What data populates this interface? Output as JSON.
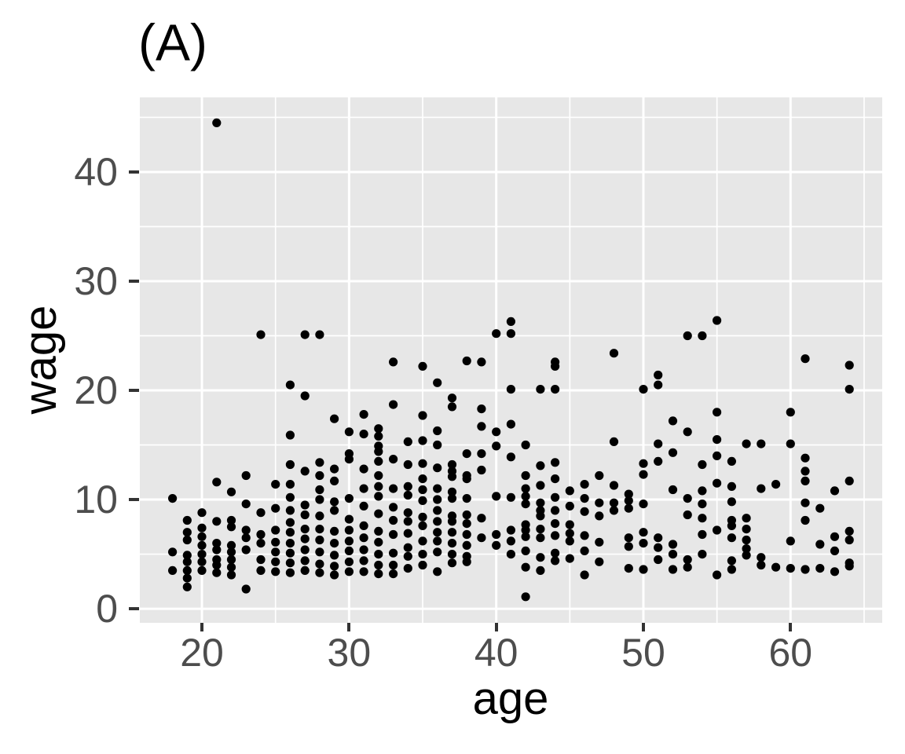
{
  "title": "(A)",
  "colors": {
    "background": "#FFFFFF",
    "panel_background": "#E7E7E7",
    "grid": "#FFFFFF",
    "point": "#000000",
    "tick_mark": "#333333",
    "tick_label": "#4D4D4D",
    "text": "#000000"
  },
  "chart_data": {
    "type": "scatter",
    "title": "(A)",
    "xlabel": "age",
    "ylabel": "wage",
    "xlim": [
      15.78,
      66.23
    ],
    "ylim": [
      -1.29,
      46.83
    ],
    "x_ticks": [
      20,
      30,
      40,
      50,
      60
    ],
    "y_ticks": [
      0,
      10,
      20,
      30,
      40
    ],
    "x_minor_ticks": [
      25,
      35,
      45,
      55,
      65
    ],
    "y_minor_ticks": [
      5,
      15,
      25,
      35,
      45
    ],
    "grid": true,
    "legend": "none",
    "point_radius_px": 5.6,
    "major_grid_width": 3,
    "minor_grid_width": 1.7,
    "points": [
      [
        18,
        10.1
      ],
      [
        18,
        5.2
      ],
      [
        18,
        3.5
      ],
      [
        19,
        8.1
      ],
      [
        19,
        7.0
      ],
      [
        19,
        6.3
      ],
      [
        19,
        4.9
      ],
      [
        19,
        4.3
      ],
      [
        19,
        3.5
      ],
      [
        19,
        2.8
      ],
      [
        19,
        2.0
      ],
      [
        20,
        8.8
      ],
      [
        20,
        7.4
      ],
      [
        20,
        6.6
      ],
      [
        20,
        5.8
      ],
      [
        20,
        5.0
      ],
      [
        20,
        4.3
      ],
      [
        20,
        3.5
      ],
      [
        21,
        44.5
      ],
      [
        21,
        11.6
      ],
      [
        21,
        8.0
      ],
      [
        21,
        6.0
      ],
      [
        21,
        5.4
      ],
      [
        21,
        4.5
      ],
      [
        21,
        4.0
      ],
      [
        21,
        3.3
      ],
      [
        22,
        10.7
      ],
      [
        22,
        8.1
      ],
      [
        22,
        7.5
      ],
      [
        22,
        5.8
      ],
      [
        22,
        5.2
      ],
      [
        22,
        4.5
      ],
      [
        22,
        3.8
      ],
      [
        22,
        3.1
      ],
      [
        23,
        12.2
      ],
      [
        23,
        9.6
      ],
      [
        23,
        7.2
      ],
      [
        23,
        6.5
      ],
      [
        23,
        5.4
      ],
      [
        23,
        1.8
      ],
      [
        24,
        25.1
      ],
      [
        24,
        8.8
      ],
      [
        24,
        6.8
      ],
      [
        24,
        6.0
      ],
      [
        24,
        4.5
      ],
      [
        24,
        3.5
      ],
      [
        25,
        11.4
      ],
      [
        25,
        9.2
      ],
      [
        25,
        7.2
      ],
      [
        25,
        6.1
      ],
      [
        25,
        5.2
      ],
      [
        25,
        4.3
      ],
      [
        25,
        3.4
      ],
      [
        26,
        20.5
      ],
      [
        26,
        15.9
      ],
      [
        26,
        13.2
      ],
      [
        26,
        11.4
      ],
      [
        26,
        10.2
      ],
      [
        26,
        9.0
      ],
      [
        26,
        7.9
      ],
      [
        26,
        7.0
      ],
      [
        26,
        6.0
      ],
      [
        26,
        5.1
      ],
      [
        26,
        4.2
      ],
      [
        26,
        3.3
      ],
      [
        27,
        25.1
      ],
      [
        27,
        19.5
      ],
      [
        27,
        12.6
      ],
      [
        27,
        9.5
      ],
      [
        27,
        8.6
      ],
      [
        27,
        7.3
      ],
      [
        27,
        6.4
      ],
      [
        27,
        5.4
      ],
      [
        27,
        4.4
      ],
      [
        27,
        3.5
      ],
      [
        28,
        25.1
      ],
      [
        28,
        13.4
      ],
      [
        28,
        12.2
      ],
      [
        28,
        10.9
      ],
      [
        28,
        10.0
      ],
      [
        28,
        8.5
      ],
      [
        28,
        7.3
      ],
      [
        28,
        6.3
      ],
      [
        28,
        5.2
      ],
      [
        28,
        4.1
      ],
      [
        28,
        3.3
      ],
      [
        29,
        17.4
      ],
      [
        29,
        12.8
      ],
      [
        29,
        11.7
      ],
      [
        29,
        9.8
      ],
      [
        29,
        9.0
      ],
      [
        29,
        7.1
      ],
      [
        29,
        6.0
      ],
      [
        29,
        4.9
      ],
      [
        29,
        3.9
      ],
      [
        29,
        3.1
      ],
      [
        30,
        16.2
      ],
      [
        30,
        14.2
      ],
      [
        30,
        13.7
      ],
      [
        30,
        10.1
      ],
      [
        30,
        8.2
      ],
      [
        30,
        7.2
      ],
      [
        30,
        6.2
      ],
      [
        30,
        5.3
      ],
      [
        30,
        4.3
      ],
      [
        30,
        3.4
      ],
      [
        31,
        17.8
      ],
      [
        31,
        16.0
      ],
      [
        31,
        12.8
      ],
      [
        31,
        11.0
      ],
      [
        31,
        9.4
      ],
      [
        31,
        7.6
      ],
      [
        31,
        6.5
      ],
      [
        31,
        5.4
      ],
      [
        31,
        4.4
      ],
      [
        31,
        3.4
      ],
      [
        32,
        16.5
      ],
      [
        32,
        15.8
      ],
      [
        32,
        14.9
      ],
      [
        32,
        14.4
      ],
      [
        32,
        13.5
      ],
      [
        32,
        12.2
      ],
      [
        32,
        11.2
      ],
      [
        32,
        10.3
      ],
      [
        32,
        8.7
      ],
      [
        32,
        7.1
      ],
      [
        32,
        6.1
      ],
      [
        32,
        5.0
      ],
      [
        32,
        4.0
      ],
      [
        32,
        3.2
      ],
      [
        33,
        22.6
      ],
      [
        33,
        18.7
      ],
      [
        33,
        13.7
      ],
      [
        33,
        11.0
      ],
      [
        33,
        9.3
      ],
      [
        33,
        8.1
      ],
      [
        33,
        6.8
      ],
      [
        33,
        5.1
      ],
      [
        33,
        4.0
      ],
      [
        33,
        3.2
      ],
      [
        34,
        15.3
      ],
      [
        34,
        13.2
      ],
      [
        34,
        11.2
      ],
      [
        34,
        10.4
      ],
      [
        34,
        8.8
      ],
      [
        34,
        8.0
      ],
      [
        34,
        6.9
      ],
      [
        34,
        5.6
      ],
      [
        34,
        4.8
      ],
      [
        34,
        3.7
      ],
      [
        35,
        22.2
      ],
      [
        35,
        17.7
      ],
      [
        35,
        15.4
      ],
      [
        35,
        13.3
      ],
      [
        35,
        11.9
      ],
      [
        35,
        10.9
      ],
      [
        35,
        9.9
      ],
      [
        35,
        8.4
      ],
      [
        35,
        7.6
      ],
      [
        35,
        6.2
      ],
      [
        35,
        5.0
      ],
      [
        35,
        4.0
      ],
      [
        36,
        20.7
      ],
      [
        36,
        16.3
      ],
      [
        36,
        15.0
      ],
      [
        36,
        12.9
      ],
      [
        36,
        11.0
      ],
      [
        36,
        10.0
      ],
      [
        36,
        9.0
      ],
      [
        36,
        8.0
      ],
      [
        36,
        7.0
      ],
      [
        36,
        6.2
      ],
      [
        36,
        5.2
      ],
      [
        36,
        3.4
      ],
      [
        37,
        19.3
      ],
      [
        37,
        18.5
      ],
      [
        37,
        13.2
      ],
      [
        37,
        12.6
      ],
      [
        37,
        12.1
      ],
      [
        37,
        10.7
      ],
      [
        37,
        10.1
      ],
      [
        37,
        8.5
      ],
      [
        37,
        8.0
      ],
      [
        37,
        7.0
      ],
      [
        37,
        6.0
      ],
      [
        37,
        5.0
      ],
      [
        37,
        4.2
      ],
      [
        38,
        22.7
      ],
      [
        38,
        14.2
      ],
      [
        38,
        12.2
      ],
      [
        38,
        11.9
      ],
      [
        38,
        10.1
      ],
      [
        38,
        8.6
      ],
      [
        38,
        7.8
      ],
      [
        38,
        6.8
      ],
      [
        38,
        5.8
      ],
      [
        38,
        4.8
      ],
      [
        38,
        4.3
      ],
      [
        39,
        22.6
      ],
      [
        39,
        18.3
      ],
      [
        39,
        16.7
      ],
      [
        39,
        14.2
      ],
      [
        39,
        12.7
      ],
      [
        39,
        8.3
      ],
      [
        39,
        6.5
      ],
      [
        40,
        25.2
      ],
      [
        40,
        16.2
      ],
      [
        40,
        14.9
      ],
      [
        40,
        10.3
      ],
      [
        40,
        6.8
      ],
      [
        40,
        5.8
      ],
      [
        41,
        26.3
      ],
      [
        41,
        25.2
      ],
      [
        41,
        20.1
      ],
      [
        41,
        16.9
      ],
      [
        41,
        13.9
      ],
      [
        41,
        10.2
      ],
      [
        41,
        7.2
      ],
      [
        41,
        6.2
      ],
      [
        41,
        5.0
      ],
      [
        42,
        15.0
      ],
      [
        42,
        12.2
      ],
      [
        42,
        11.0
      ],
      [
        42,
        10.3
      ],
      [
        42,
        9.6
      ],
      [
        42,
        7.7
      ],
      [
        42,
        7.2
      ],
      [
        42,
        6.6
      ],
      [
        42,
        5.3
      ],
      [
        42,
        3.8
      ],
      [
        42,
        1.1
      ],
      [
        43,
        20.1
      ],
      [
        43,
        13.1
      ],
      [
        43,
        11.3
      ],
      [
        43,
        9.7
      ],
      [
        43,
        9.0
      ],
      [
        43,
        8.5
      ],
      [
        43,
        7.3
      ],
      [
        43,
        6.5
      ],
      [
        43,
        4.7
      ],
      [
        43,
        3.5
      ],
      [
        44,
        22.6
      ],
      [
        44,
        22.2
      ],
      [
        44,
        20.1
      ],
      [
        44,
        13.4
      ],
      [
        44,
        11.9
      ],
      [
        44,
        10.2
      ],
      [
        44,
        9.0
      ],
      [
        44,
        7.8
      ],
      [
        44,
        6.7
      ],
      [
        44,
        5.1
      ],
      [
        44,
        4.4
      ],
      [
        45,
        10.8
      ],
      [
        45,
        9.4
      ],
      [
        45,
        7.7
      ],
      [
        45,
        6.9
      ],
      [
        45,
        6.2
      ],
      [
        45,
        4.6
      ],
      [
        46,
        11.4
      ],
      [
        46,
        10.1
      ],
      [
        46,
        8.9
      ],
      [
        46,
        6.7
      ],
      [
        46,
        5.3
      ],
      [
        46,
        3.1
      ],
      [
        47,
        12.2
      ],
      [
        47,
        9.7
      ],
      [
        47,
        8.5
      ],
      [
        47,
        6.1
      ],
      [
        47,
        4.3
      ],
      [
        48,
        23.4
      ],
      [
        48,
        15.3
      ],
      [
        48,
        11.3
      ],
      [
        48,
        9.7
      ],
      [
        48,
        9.0
      ],
      [
        49,
        10.5
      ],
      [
        49,
        9.9
      ],
      [
        49,
        9.2
      ],
      [
        49,
        6.5
      ],
      [
        49,
        5.7
      ],
      [
        49,
        3.7
      ],
      [
        50,
        20.1
      ],
      [
        50,
        13.3
      ],
      [
        50,
        12.3
      ],
      [
        50,
        9.6
      ],
      [
        50,
        7.0
      ],
      [
        50,
        6.0
      ],
      [
        50,
        3.6
      ],
      [
        51,
        21.4
      ],
      [
        51,
        20.5
      ],
      [
        51,
        15.1
      ],
      [
        51,
        13.5
      ],
      [
        51,
        6.5
      ],
      [
        51,
        5.6
      ],
      [
        51,
        4.5
      ],
      [
        52,
        17.2
      ],
      [
        52,
        14.3
      ],
      [
        52,
        10.9
      ],
      [
        52,
        5.9
      ],
      [
        52,
        5.0
      ],
      [
        52,
        3.6
      ],
      [
        53,
        25.0
      ],
      [
        53,
        16.2
      ],
      [
        53,
        10.1
      ],
      [
        53,
        8.6
      ],
      [
        53,
        4.5
      ],
      [
        53,
        3.8
      ],
      [
        54,
        25.0
      ],
      [
        54,
        13.2
      ],
      [
        54,
        10.8
      ],
      [
        54,
        9.6
      ],
      [
        54,
        8.3
      ],
      [
        54,
        6.8
      ],
      [
        54,
        5.0
      ],
      [
        55,
        26.4
      ],
      [
        55,
        18.0
      ],
      [
        55,
        15.5
      ],
      [
        55,
        14.0
      ],
      [
        55,
        11.5
      ],
      [
        55,
        7.2
      ],
      [
        55,
        3.1
      ],
      [
        56,
        13.5
      ],
      [
        56,
        11.2
      ],
      [
        56,
        9.8
      ],
      [
        56,
        8.1
      ],
      [
        56,
        7.6
      ],
      [
        56,
        6.5
      ],
      [
        56,
        4.4
      ],
      [
        56,
        3.6
      ],
      [
        57,
        15.1
      ],
      [
        57,
        8.3
      ],
      [
        57,
        7.3
      ],
      [
        57,
        6.3
      ],
      [
        57,
        5.5
      ],
      [
        57,
        4.9
      ],
      [
        58,
        15.1
      ],
      [
        58,
        11.0
      ],
      [
        58,
        4.7
      ],
      [
        58,
        4.0
      ],
      [
        59,
        11.4
      ],
      [
        59,
        3.8
      ],
      [
        60,
        18.0
      ],
      [
        60,
        15.1
      ],
      [
        60,
        6.2
      ],
      [
        60,
        3.7
      ],
      [
        61,
        22.9
      ],
      [
        61,
        13.8
      ],
      [
        61,
        12.6
      ],
      [
        61,
        11.7
      ],
      [
        61,
        9.7
      ],
      [
        61,
        8.1
      ],
      [
        61,
        3.6
      ],
      [
        62,
        9.2
      ],
      [
        62,
        5.9
      ],
      [
        62,
        3.7
      ],
      [
        63,
        10.8
      ],
      [
        63,
        6.6
      ],
      [
        63,
        5.3
      ],
      [
        63,
        3.4
      ],
      [
        64,
        22.3
      ],
      [
        64,
        20.1
      ],
      [
        64,
        11.7
      ],
      [
        64,
        7.1
      ],
      [
        64,
        6.3
      ],
      [
        64,
        4.2
      ],
      [
        64,
        3.9
      ]
    ]
  }
}
